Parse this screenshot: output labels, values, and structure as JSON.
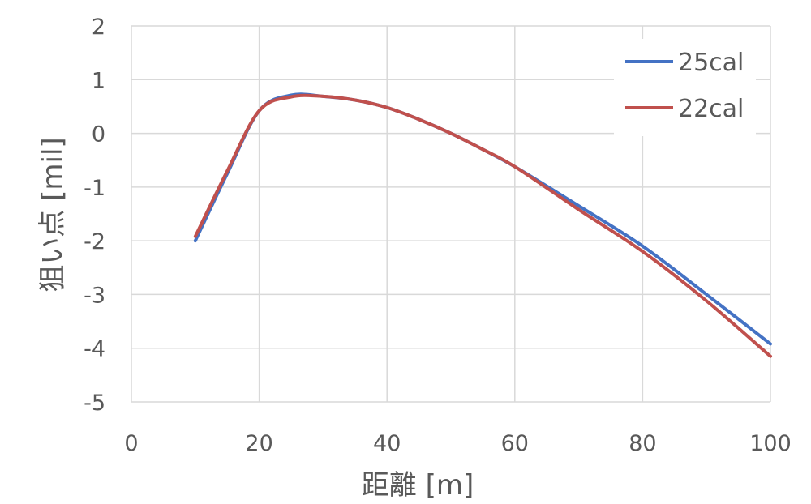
{
  "chart_data": {
    "type": "line",
    "xlabel": "距離 [m]",
    "ylabel": "狙い点 [mil]",
    "xlim": [
      0,
      100
    ],
    "ylim": [
      -5,
      2
    ],
    "x_ticks": [
      0,
      20,
      40,
      60,
      80,
      100
    ],
    "y_ticks": [
      2,
      1,
      0,
      -1,
      -2,
      -3,
      -4,
      -5
    ],
    "grid": true,
    "legend_position": "top-right",
    "series": [
      {
        "name": "25cal",
        "color": "#4472c4",
        "x": [
          10,
          15,
          20,
          25,
          30,
          35,
          40,
          45,
          50,
          55,
          60,
          70,
          80,
          90,
          100
        ],
        "y": [
          -2.0,
          -0.75,
          0.42,
          0.71,
          0.69,
          0.62,
          0.48,
          0.26,
          0.0,
          -0.3,
          -0.62,
          -1.35,
          -2.1,
          -3.0,
          -3.92
        ]
      },
      {
        "name": "22cal",
        "color": "#c0504d",
        "x": [
          10,
          15,
          20,
          25,
          30,
          35,
          40,
          45,
          50,
          55,
          60,
          70,
          80,
          90,
          100
        ],
        "y": [
          -1.92,
          -0.7,
          0.42,
          0.68,
          0.69,
          0.62,
          0.48,
          0.26,
          0.0,
          -0.3,
          -0.62,
          -1.42,
          -2.2,
          -3.12,
          -4.15
        ]
      }
    ]
  }
}
